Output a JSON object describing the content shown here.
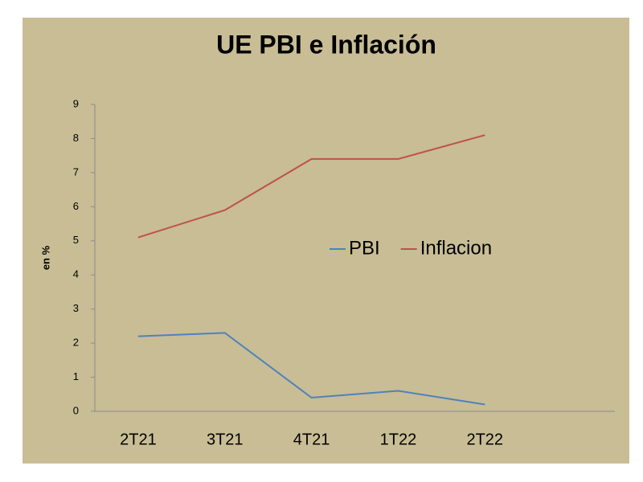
{
  "chart_data": {
    "type": "line",
    "title": "UE PBI e Inflación",
    "y_label": "en %",
    "categories": [
      "2T21",
      "3T21",
      "4T21",
      "1T22",
      "2T22",
      null
    ],
    "series": [
      {
        "name": "PBI",
        "color": "#4f81bd",
        "values": [
          2.2,
          2.3,
          0.4,
          0.6,
          0.2,
          null
        ]
      },
      {
        "name": "Inflacion",
        "color": "#c0504d",
        "values": [
          5.1,
          5.9,
          7.4,
          7.4,
          8.1,
          null
        ]
      }
    ],
    "ylim": [
      0,
      9
    ],
    "yticks": [
      0,
      1,
      2,
      3,
      4,
      5,
      6,
      7,
      8,
      9
    ],
    "grid": false,
    "legend_position": "center"
  }
}
